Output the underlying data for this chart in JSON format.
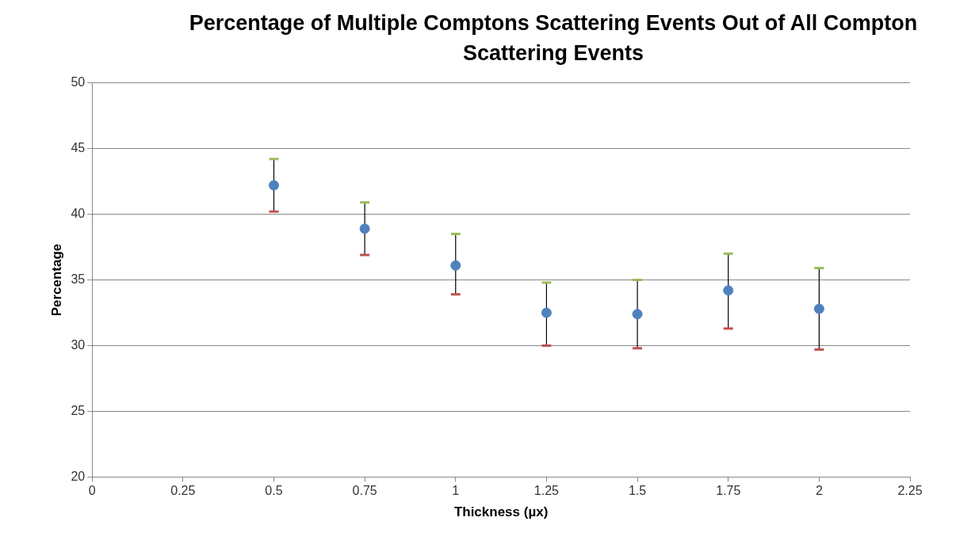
{
  "chart_data": {
    "type": "scatter",
    "title": "Percentage of Multiple Comptons Scattering Events Out of All Compton Scattering Events",
    "xlabel": "Thickness (µx)",
    "ylabel": "Percentage",
    "x": [
      0.5,
      0.75,
      1,
      1.25,
      1.5,
      1.75,
      2
    ],
    "series": [
      {
        "color": "#4f81bd",
        "values": [
          42.2,
          38.9,
          36.1,
          32.5,
          32.4,
          34.2,
          32.8
        ],
        "errors": [
          [
            40.2,
            44.2
          ],
          [
            36.9,
            40.9
          ],
          [
            33.9,
            38.5
          ],
          [
            30.0,
            34.8
          ],
          [
            29.8,
            35.0
          ],
          [
            31.3,
            37.0
          ],
          [
            29.7,
            35.9
          ]
        ]
      }
    ],
    "xlim": [
      0,
      2.25
    ],
    "xticks": [
      0,
      0.25,
      0.5,
      0.75,
      1,
      1.25,
      1.5,
      1.75,
      2,
      2.25
    ],
    "ylim": [
      20,
      50
    ],
    "yticks": [
      20,
      25,
      30,
      35,
      40,
      45,
      50
    ],
    "grid": "y",
    "marker": "circle",
    "legend": false
  }
}
